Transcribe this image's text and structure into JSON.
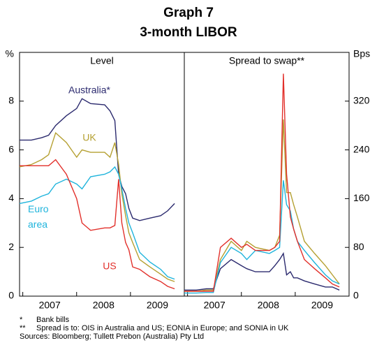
{
  "title": "Graph 7",
  "subtitle": "3-month LIBOR",
  "chart_data": [
    {
      "type": "line",
      "panel_title": "Level",
      "ylabel": "%",
      "x": [
        2006.94,
        2007.16,
        2007.35,
        2007.48,
        2007.61,
        2007.81,
        2008.0,
        2008.1,
        2008.26,
        2008.52,
        2008.62,
        2008.71,
        2008.78,
        2008.84,
        2008.91,
        2008.97,
        2009.04,
        2009.17,
        2009.36,
        2009.56,
        2009.69,
        2009.82
      ],
      "xlim": [
        2006.94,
        2010
      ],
      "xticks": [
        {
          "value": 2007.5,
          "label": "2007"
        },
        {
          "value": 2008.5,
          "label": "2008"
        },
        {
          "value": 2009.5,
          "label": "2009"
        }
      ],
      "xtick_marks": [
        2007,
        2008,
        2009
      ],
      "ylim": [
        0,
        10
      ],
      "yticks": [
        0,
        2,
        4,
        6,
        8
      ],
      "y_axis_side": "left",
      "series": [
        {
          "name": "Australia*",
          "color": "#2b2a6e",
          "values": [
            6.4,
            6.4,
            6.5,
            6.6,
            7.0,
            7.4,
            7.7,
            8.1,
            7.9,
            7.85,
            7.6,
            7.2,
            5.0,
            4.5,
            4.2,
            3.6,
            3.2,
            3.1,
            3.2,
            3.3,
            3.5,
            3.8
          ]
        },
        {
          "name": "UK",
          "color": "#b5a032",
          "values": [
            5.3,
            5.4,
            5.6,
            5.8,
            6.7,
            6.3,
            5.7,
            6.0,
            5.9,
            5.9,
            5.7,
            6.3,
            5.4,
            4.2,
            3.3,
            2.6,
            2.2,
            1.5,
            1.2,
            0.9,
            0.7,
            0.6
          ]
        },
        {
          "name": "Euro area",
          "color": "#1fb4dc",
          "values": [
            3.8,
            3.9,
            4.1,
            4.2,
            4.6,
            4.8,
            4.6,
            4.4,
            4.9,
            5.0,
            5.1,
            5.3,
            5.0,
            4.4,
            3.6,
            3.0,
            2.6,
            1.8,
            1.4,
            1.1,
            0.8,
            0.7
          ]
        },
        {
          "name": "US",
          "color": "#e2302b",
          "values": [
            5.35,
            5.35,
            5.35,
            5.35,
            5.6,
            5.0,
            4.0,
            3.0,
            2.7,
            2.8,
            2.8,
            2.9,
            4.8,
            3.0,
            2.2,
            1.9,
            1.2,
            1.1,
            0.8,
            0.6,
            0.4,
            0.3
          ]
        }
      ]
    },
    {
      "type": "line",
      "panel_title": "Spread to swap**",
      "ylabel": "Bps",
      "x": [
        2006.94,
        2007.16,
        2007.35,
        2007.48,
        2007.61,
        2007.81,
        2008.0,
        2008.1,
        2008.26,
        2008.52,
        2008.62,
        2008.71,
        2008.78,
        2008.84,
        2008.91,
        2008.97,
        2009.04,
        2009.17,
        2009.36,
        2009.56,
        2009.69,
        2009.82
      ],
      "xlim": [
        2006.94,
        2010
      ],
      "xticks": [
        {
          "value": 2007.5,
          "label": "2007"
        },
        {
          "value": 2008.5,
          "label": "2008"
        },
        {
          "value": 2009.5,
          "label": "2009"
        }
      ],
      "xtick_marks": [
        2007,
        2008,
        2009
      ],
      "ylim": [
        0,
        400
      ],
      "yticks": [
        0,
        80,
        160,
        240,
        320
      ],
      "y_axis_side": "right",
      "series": [
        {
          "color": "#2b2a6e",
          "values": [
            10,
            10,
            12,
            12,
            45,
            60,
            50,
            45,
            40,
            40,
            50,
            60,
            70,
            35,
            40,
            30,
            30,
            25,
            20,
            15,
            15,
            10
          ]
        },
        {
          "color": "#b5a032",
          "values": [
            8,
            8,
            10,
            10,
            60,
            90,
            75,
            90,
            80,
            75,
            80,
            100,
            290,
            170,
            170,
            150,
            130,
            90,
            70,
            50,
            35,
            20
          ]
        },
        {
          "color": "#1fb4dc",
          "values": [
            5,
            5,
            6,
            6,
            55,
            80,
            70,
            60,
            75,
            70,
            75,
            80,
            190,
            150,
            140,
            110,
            90,
            75,
            55,
            35,
            25,
            20
          ]
        },
        {
          "color": "#e2302b",
          "values": [
            8,
            8,
            8,
            8,
            80,
            95,
            80,
            85,
            75,
            75,
            80,
            90,
            365,
            200,
            130,
            110,
            90,
            60,
            45,
            30,
            20,
            15
          ]
        }
      ]
    }
  ],
  "notes": [
    {
      "symbol": "*",
      "text": "Bank bills"
    },
    {
      "symbol": "**",
      "text": "Spread is to: OIS in Australia and US; EONIA in Europe; and SONIA in UK"
    }
  ],
  "sources": "Sources: Bloomberg; Tullett Prebon (Australia) Pty Ltd"
}
